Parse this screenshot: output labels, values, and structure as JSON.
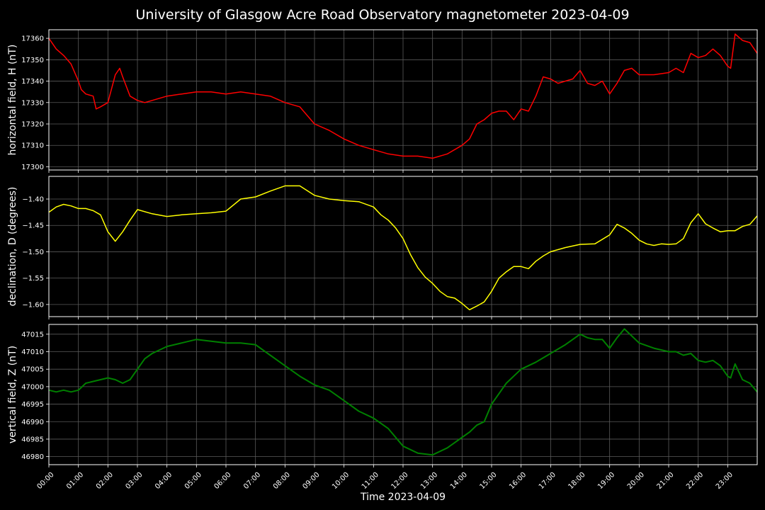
{
  "title": "University of Glasgow Acre Road Observatory magnetometer 2023-04-09",
  "chart_data": {
    "type": "line",
    "xlabel": "Time 2023-04-09",
    "x_ticks": [
      "00:00",
      "01:00",
      "02:00",
      "03:00",
      "04:00",
      "05:00",
      "06:00",
      "07:00",
      "08:00",
      "09:00",
      "10:00",
      "11:00",
      "12:00",
      "13:00",
      "14:00",
      "15:00",
      "16:00",
      "17:00",
      "18:00",
      "19:00",
      "20:00",
      "21:00",
      "22:00",
      "23:00"
    ],
    "xlim_hours": [
      0,
      24
    ],
    "grid": true,
    "panels": [
      {
        "ylabel": "horizontal field, H (nT)",
        "color": "#ff0000",
        "ylim": [
          17298.5,
          17364
        ],
        "yticks": [
          17300,
          17310,
          17320,
          17330,
          17340,
          17350,
          17360
        ],
        "x": [
          0,
          0.25,
          0.5,
          0.75,
          1.0,
          1.1,
          1.25,
          1.5,
          1.6,
          1.75,
          2.0,
          2.25,
          2.4,
          2.5,
          2.75,
          3.0,
          3.25,
          3.5,
          4.0,
          4.5,
          5.0,
          5.5,
          6.0,
          6.5,
          7.0,
          7.5,
          8.0,
          8.5,
          9.0,
          9.5,
          10.0,
          10.5,
          11.0,
          11.5,
          12.0,
          12.5,
          13.0,
          13.5,
          14.0,
          14.25,
          14.5,
          14.75,
          15.0,
          15.25,
          15.5,
          15.75,
          16.0,
          16.25,
          16.5,
          16.75,
          17.0,
          17.25,
          17.5,
          17.75,
          18.0,
          18.25,
          18.5,
          18.75,
          19.0,
          19.25,
          19.5,
          19.75,
          20.0,
          20.5,
          21.0,
          21.25,
          21.5,
          21.75,
          22.0,
          22.25,
          22.5,
          22.75,
          23.0,
          23.1,
          23.25,
          23.5,
          23.75,
          24.0
        ],
        "values": [
          17360,
          17355,
          17352,
          17348,
          17340,
          17336,
          17334,
          17333,
          17327,
          17328,
          17330,
          17343,
          17346,
          17342,
          17333,
          17331,
          17330,
          17331,
          17333,
          17334,
          17335,
          17335,
          17334,
          17335,
          17334,
          17333,
          17330,
          17328,
          17320,
          17317,
          17313,
          17310,
          17308,
          17306,
          17305,
          17305,
          17304,
          17306,
          17310,
          17313,
          17320,
          17322,
          17325,
          17326,
          17326,
          17322,
          17327,
          17326,
          17333,
          17342,
          17341,
          17339,
          17340,
          17341,
          17345,
          17339,
          17338,
          17340,
          17334,
          17339,
          17345,
          17346,
          17343,
          17343,
          17344,
          17346,
          17344,
          17353,
          17351,
          17352,
          17355,
          17352,
          17347,
          17346,
          17362,
          17359,
          17358,
          17353
        ]
      },
      {
        "ylabel": "declination, D (degrees)",
        "color": "#ffff00",
        "ylim": [
          -1.623,
          -1.357
        ],
        "yticks": [
          -1.6,
          -1.55,
          -1.5,
          -1.45,
          -1.4
        ],
        "ytick_labels": [
          "−1.60",
          "−1.55",
          "−1.50",
          "−1.45",
          "−1.40"
        ],
        "x": [
          0,
          0.25,
          0.5,
          0.75,
          1.0,
          1.25,
          1.5,
          1.75,
          2.0,
          2.25,
          2.5,
          2.75,
          3.0,
          3.5,
          4.0,
          4.5,
          5.0,
          5.5,
          6.0,
          6.5,
          7.0,
          7.5,
          8.0,
          8.5,
          9.0,
          9.5,
          10.0,
          10.5,
          11.0,
          11.25,
          11.5,
          11.75,
          12.0,
          12.25,
          12.5,
          12.75,
          13.0,
          13.25,
          13.5,
          13.75,
          14.0,
          14.25,
          14.5,
          14.75,
          15.0,
          15.25,
          15.5,
          15.75,
          16.0,
          16.25,
          16.5,
          16.75,
          17.0,
          17.5,
          18.0,
          18.5,
          19.0,
          19.25,
          19.5,
          19.75,
          20.0,
          20.25,
          20.5,
          20.75,
          21.0,
          21.25,
          21.5,
          21.75,
          22.0,
          22.25,
          22.5,
          22.75,
          23.0,
          23.25,
          23.5,
          23.75,
          24.0
        ],
        "values": [
          -1.425,
          -1.415,
          -1.41,
          -1.413,
          -1.418,
          -1.418,
          -1.422,
          -1.43,
          -1.462,
          -1.48,
          -1.462,
          -1.44,
          -1.42,
          -1.428,
          -1.433,
          -1.43,
          -1.428,
          -1.426,
          -1.423,
          -1.4,
          -1.396,
          -1.385,
          -1.375,
          -1.375,
          -1.393,
          -1.4,
          -1.403,
          -1.405,
          -1.415,
          -1.43,
          -1.44,
          -1.455,
          -1.475,
          -1.505,
          -1.53,
          -1.548,
          -1.56,
          -1.575,
          -1.585,
          -1.588,
          -1.598,
          -1.61,
          -1.603,
          -1.595,
          -1.575,
          -1.55,
          -1.538,
          -1.528,
          -1.528,
          -1.532,
          -1.518,
          -1.508,
          -1.5,
          -1.492,
          -1.486,
          -1.485,
          -1.468,
          -1.448,
          -1.455,
          -1.465,
          -1.478,
          -1.485,
          -1.488,
          -1.485,
          -1.486,
          -1.485,
          -1.475,
          -1.445,
          -1.428,
          -1.447,
          -1.455,
          -1.462,
          -1.46,
          -1.46,
          -1.452,
          -1.448,
          -1.432
        ]
      },
      {
        "ylabel": "vertical field, Z (nT)",
        "color": "#008000",
        "ylim": [
          46977.7,
          47017.8
        ],
        "yticks": [
          46980,
          46985,
          46990,
          46995,
          47000,
          47005,
          47010,
          47015
        ],
        "x": [
          0,
          0.25,
          0.5,
          0.75,
          1.0,
          1.25,
          1.5,
          1.75,
          2.0,
          2.25,
          2.5,
          2.75,
          3.0,
          3.25,
          3.5,
          4.0,
          4.5,
          5.0,
          5.5,
          6.0,
          6.5,
          7.0,
          7.5,
          8.0,
          8.5,
          9.0,
          9.5,
          10.0,
          10.5,
          11.0,
          11.5,
          12.0,
          12.5,
          13.0,
          13.5,
          14.0,
          14.25,
          14.5,
          14.75,
          15.0,
          15.25,
          15.5,
          16.0,
          16.5,
          17.0,
          17.5,
          18.0,
          18.25,
          18.5,
          18.75,
          19.0,
          19.25,
          19.5,
          19.75,
          20.0,
          20.5,
          21.0,
          21.25,
          21.5,
          21.75,
          22.0,
          22.25,
          22.5,
          22.75,
          23.0,
          23.1,
          23.25,
          23.5,
          23.75,
          24.0
        ],
        "values": [
          46999,
          46998.5,
          46999,
          46998.5,
          46999,
          47001,
          47001.5,
          47002,
          47002.5,
          47002,
          47001,
          47002,
          47005,
          47008,
          47009.5,
          47011.5,
          47012.5,
          47013.5,
          47013,
          47012.5,
          47012.5,
          47012,
          47009,
          47006,
          47003,
          47000.5,
          46999,
          46996,
          46993,
          46991,
          46988,
          46983,
          46981,
          46980.5,
          46982.5,
          46985.5,
          46987,
          46989,
          46990,
          46995,
          46998,
          47001,
          47005,
          47007,
          47009.5,
          47012,
          47015,
          47014,
          47013.5,
          47013.5,
          47011,
          47014,
          47016.5,
          47014.5,
          47012.5,
          47011,
          47010,
          47010,
          47009,
          47009.5,
          47007.5,
          47007,
          47007.5,
          47006,
          47003,
          47002.5,
          47006.5,
          47002,
          47001,
          46998.5
        ]
      }
    ]
  }
}
